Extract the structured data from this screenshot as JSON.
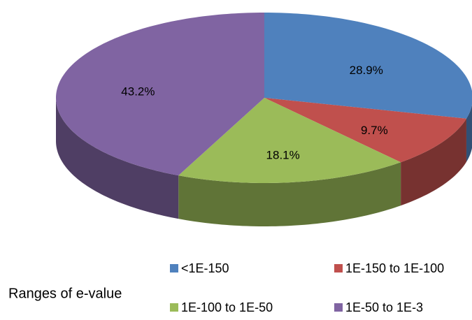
{
  "chart_data": {
    "type": "pie3d",
    "categories": [
      "<1E-150",
      "1E-150 to 1E-100",
      "1E-100 to 1E-50",
      "1E-50 to 1E-3"
    ],
    "values": [
      28.9,
      9.7,
      18.1,
      43.2
    ],
    "value_labels": [
      "28.9%",
      "9.7%",
      "18.1%",
      "43.2%"
    ],
    "colors": [
      "#4f81bd",
      "#c0504d",
      "#9bbb59",
      "#8064a2"
    ],
    "legend_title": "Ranges of e-value",
    "legend": "bottom"
  }
}
